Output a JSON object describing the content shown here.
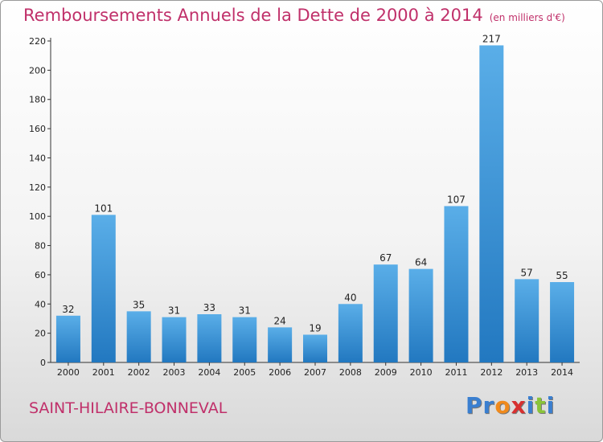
{
  "header": {
    "title": "Remboursements Annuels de la Dette de 2000 à 2014",
    "unit": "(en milliers d'€)"
  },
  "footer": {
    "commune": "SAINT-HILAIRE-BONNEVAL",
    "logo": [
      "P",
      "r",
      "o",
      "x",
      "i",
      "t",
      "i"
    ]
  },
  "colors": {
    "title": "#c0306a",
    "bar_top": "#5aaee8",
    "bar_bottom": "#2278c0",
    "logo": [
      "#3a7fd0",
      "#3a7fd0",
      "#f08a1c",
      "#d83030",
      "#3a7fd0",
      "#8ac43a",
      "#3a7fd0"
    ]
  },
  "chart_data": {
    "type": "bar",
    "categories": [
      "2000",
      "2001",
      "2002",
      "2003",
      "2004",
      "2005",
      "2006",
      "2007",
      "2008",
      "2009",
      "2010",
      "2011",
      "2012",
      "2013",
      "2014"
    ],
    "values": [
      32,
      101,
      35,
      31,
      33,
      31,
      24,
      19,
      40,
      67,
      64,
      107,
      217,
      57,
      55
    ],
    "ylim": [
      0,
      220
    ],
    "yticks": [
      0,
      20,
      40,
      60,
      80,
      100,
      120,
      140,
      160,
      180,
      200,
      220
    ],
    "grid": false,
    "legend": "none"
  }
}
